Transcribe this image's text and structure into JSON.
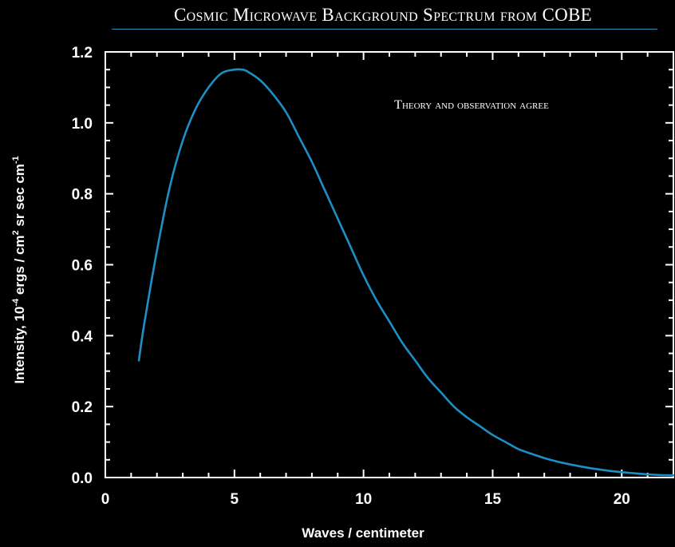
{
  "chart_data": {
    "type": "line",
    "title": "Cosmic Microwave Background Spectrum from COBE",
    "annotation": "Theory and observation agree",
    "xlabel": "Waves / centimeter",
    "ylabel": {
      "base": "Intensity, 10",
      "exp1": "-4",
      "mid": " ergs / cm",
      "exp2": "2",
      "tail": " sr sec cm",
      "exp3": "-1"
    },
    "xlim": [
      0,
      22
    ],
    "ylim": [
      0,
      1.2
    ],
    "x_ticks": [
      0,
      5,
      10,
      15,
      20
    ],
    "x_tick_labels": [
      "0",
      "5",
      "10",
      "15",
      "20"
    ],
    "y_ticks": [
      0,
      0.2,
      0.4,
      0.6,
      0.8,
      1.0,
      1.2
    ],
    "y_tick_labels": [
      "0.0",
      "0.2",
      "0.4",
      "0.6",
      "0.8",
      "1.0",
      "1.2"
    ],
    "grid": false,
    "line_color": "#1e8fc4",
    "series": [
      {
        "x": [
          1.3,
          1.5,
          2,
          2.5,
          3,
          3.5,
          4,
          4.5,
          5,
          5.3,
          5.5,
          6,
          6.5,
          7,
          7.5,
          8,
          8.5,
          9,
          9.5,
          10,
          10.5,
          11,
          11.5,
          12,
          12.5,
          13,
          13.5,
          14,
          14.5,
          15,
          15.5,
          16,
          16.5,
          17,
          17.5,
          18,
          18.5,
          19,
          19.5,
          20,
          20.5,
          21,
          21.5,
          22
        ],
        "y": [
          0.33,
          0.43,
          0.64,
          0.82,
          0.95,
          1.04,
          1.1,
          1.14,
          1.15,
          1.15,
          1.145,
          1.12,
          1.08,
          1.03,
          0.96,
          0.89,
          0.81,
          0.73,
          0.65,
          0.57,
          0.5,
          0.44,
          0.38,
          0.33,
          0.28,
          0.24,
          0.2,
          0.17,
          0.145,
          0.12,
          0.1,
          0.08,
          0.067,
          0.055,
          0.045,
          0.037,
          0.03,
          0.024,
          0.019,
          0.015,
          0.012,
          0.009,
          0.007,
          0.006
        ]
      }
    ]
  }
}
